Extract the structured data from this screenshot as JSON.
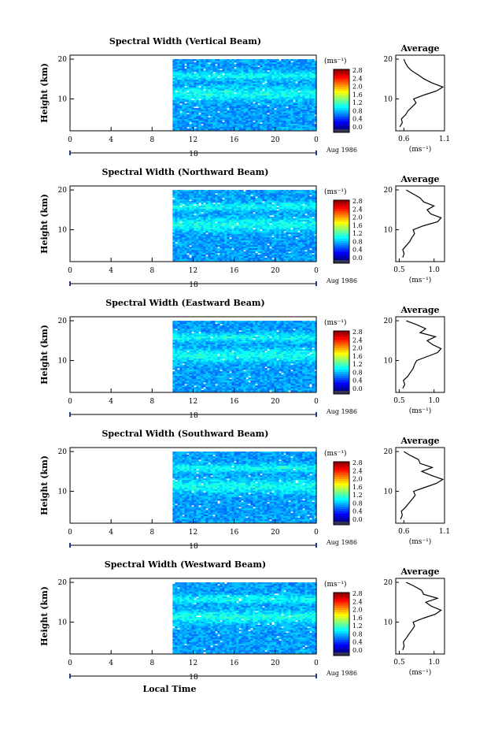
{
  "page": {
    "xaxis_title": "Local Time"
  },
  "chart_data": [
    {
      "type": "heatmap",
      "title": "Spectral Width (Vertical Beam)",
      "ylabel": "Height (km)",
      "xlabel": "Local Time",
      "x_ticks": [
        "0",
        "4",
        "8",
        "12",
        "16",
        "20",
        "0"
      ],
      "xlim": [
        0,
        24
      ],
      "ylim": [
        2,
        21
      ],
      "y_ticks": [
        "20",
        "10"
      ],
      "date_label": "18",
      "month_label": "Aug 1986",
      "colorbar": {
        "unit": "(ms⁻¹)",
        "ticks": [
          "2.8",
          "2.4",
          "2.0",
          "1.6",
          "1.2",
          "0.8",
          "0.4",
          "0.0"
        ],
        "range": [
          0,
          2.8
        ]
      },
      "profile": {
        "title": "Average",
        "xlabel": "(ms⁻¹)",
        "x_ticks": [
          "0.6",
          "1.1"
        ],
        "xlim": [
          0.5,
          1.1
        ],
        "y_ticks": [
          "20",
          "10"
        ],
        "heights": [
          3,
          4,
          5,
          6,
          7,
          8,
          9,
          10,
          11,
          12,
          13,
          14,
          15,
          16,
          17,
          18,
          19,
          20
        ],
        "values": [
          0.55,
          0.58,
          0.57,
          0.62,
          0.65,
          0.7,
          0.75,
          0.72,
          0.85,
          1.0,
          1.08,
          0.95,
          0.85,
          0.78,
          0.7,
          0.65,
          0.62,
          0.6
        ]
      }
    },
    {
      "type": "heatmap",
      "title": "Spectral Width (Northward Beam)",
      "ylabel": "Height (km)",
      "xlabel": "Local Time",
      "x_ticks": [
        "0",
        "4",
        "8",
        "12",
        "16",
        "20",
        "0"
      ],
      "xlim": [
        0,
        24
      ],
      "ylim": [
        2,
        21
      ],
      "y_ticks": [
        "20",
        "10"
      ],
      "date_label": "18",
      "month_label": "Aug 1986",
      "colorbar": {
        "unit": "(ms⁻¹)",
        "ticks": [
          "2.8",
          "2.4",
          "2.0",
          "1.6",
          "1.2",
          "0.8",
          "0.4",
          "0.0"
        ],
        "range": [
          0,
          2.8
        ]
      },
      "profile": {
        "title": "Average",
        "xlabel": "(ms⁻¹)",
        "x_ticks": [
          "0.5",
          "1.0"
        ],
        "xlim": [
          0.45,
          1.15
        ],
        "y_ticks": [
          "20",
          "10"
        ],
        "heights": [
          3,
          4,
          5,
          6,
          7,
          8,
          9,
          10,
          11,
          12,
          13,
          14,
          15,
          16,
          17,
          18,
          19,
          20
        ],
        "values": [
          0.55,
          0.57,
          0.55,
          0.6,
          0.65,
          0.68,
          0.72,
          0.7,
          0.85,
          1.05,
          1.1,
          0.95,
          0.9,
          1.0,
          0.85,
          0.8,
          0.7,
          0.6
        ]
      }
    },
    {
      "type": "heatmap",
      "title": "Spectral Width (Eastward Beam)",
      "ylabel": "Height (km)",
      "xlabel": "Local Time",
      "x_ticks": [
        "0",
        "4",
        "8",
        "12",
        "16",
        "20",
        "0"
      ],
      "xlim": [
        0,
        24
      ],
      "ylim": [
        2,
        21
      ],
      "y_ticks": [
        "20",
        "10"
      ],
      "date_label": "18",
      "month_label": "Aug 1986",
      "colorbar": {
        "unit": "(ms⁻¹)",
        "ticks": [
          "2.8",
          "2.4",
          "2.0",
          "1.6",
          "1.2",
          "0.8",
          "0.4",
          "0.0"
        ],
        "range": [
          0,
          2.8
        ]
      },
      "profile": {
        "title": "Average",
        "xlabel": "(ms⁻¹)",
        "x_ticks": [
          "0.5",
          "1.0"
        ],
        "xlim": [
          0.45,
          1.15
        ],
        "y_ticks": [
          "20",
          "10"
        ],
        "heights": [
          3,
          4,
          5,
          6,
          7,
          8,
          9,
          10,
          11,
          12,
          13,
          14,
          15,
          16,
          17,
          18,
          19,
          20
        ],
        "values": [
          0.55,
          0.58,
          0.56,
          0.62,
          0.66,
          0.7,
          0.72,
          0.75,
          0.9,
          1.05,
          1.1,
          0.98,
          0.9,
          1.02,
          0.8,
          0.88,
          0.75,
          0.6
        ]
      }
    },
    {
      "type": "heatmap",
      "title": "Spectral Width (Southward Beam)",
      "ylabel": "Height (km)",
      "xlabel": "Local Time",
      "x_ticks": [
        "0",
        "4",
        "8",
        "12",
        "16",
        "20",
        "0"
      ],
      "xlim": [
        0,
        24
      ],
      "ylim": [
        2,
        21
      ],
      "y_ticks": [
        "20",
        "10"
      ],
      "date_label": "18",
      "month_label": "Aug 1986",
      "colorbar": {
        "unit": "(ms⁻¹)",
        "ticks": [
          "2.8",
          "2.4",
          "2.0",
          "1.6",
          "1.2",
          "0.8",
          "0.4",
          "0.0"
        ],
        "range": [
          0,
          2.8
        ]
      },
      "profile": {
        "title": "Average",
        "xlabel": "(ms⁻¹)",
        "x_ticks": [
          "0.6",
          "1.1"
        ],
        "xlim": [
          0.5,
          1.1
        ],
        "y_ticks": [
          "20",
          "10"
        ],
        "heights": [
          3,
          4,
          5,
          6,
          7,
          8,
          9,
          10,
          11,
          12,
          13,
          14,
          15,
          16,
          17,
          18,
          19,
          20
        ],
        "values": [
          0.56,
          0.58,
          0.57,
          0.62,
          0.66,
          0.7,
          0.74,
          0.72,
          0.86,
          1.0,
          1.08,
          0.94,
          0.82,
          0.95,
          0.8,
          0.78,
          0.68,
          0.6
        ]
      }
    },
    {
      "type": "heatmap",
      "title": "Spectral Width (Westward Beam)",
      "ylabel": "Height (km)",
      "xlabel": "Local Time",
      "x_ticks": [
        "0",
        "4",
        "8",
        "12",
        "16",
        "20",
        "0"
      ],
      "xlim": [
        0,
        24
      ],
      "ylim": [
        2,
        21
      ],
      "y_ticks": [
        "20",
        "10"
      ],
      "date_label": "18",
      "month_label": "Aug 1986",
      "colorbar": {
        "unit": "(ms⁻¹)",
        "ticks": [
          "2.8",
          "2.4",
          "2.0",
          "1.6",
          "1.2",
          "0.8",
          "0.4",
          "0.0"
        ],
        "range": [
          0,
          2.8
        ]
      },
      "profile": {
        "title": "Average",
        "xlabel": "(ms⁻¹)",
        "x_ticks": [
          "0.5",
          "1.0"
        ],
        "xlim": [
          0.45,
          1.15
        ],
        "y_ticks": [
          "20",
          "10"
        ],
        "heights": [
          3,
          4,
          5,
          6,
          7,
          8,
          9,
          10,
          11,
          12,
          13,
          14,
          15,
          16,
          17,
          18,
          19,
          20
        ],
        "values": [
          0.55,
          0.57,
          0.56,
          0.6,
          0.64,
          0.68,
          0.72,
          0.7,
          0.85,
          1.02,
          1.1,
          0.96,
          0.88,
          1.05,
          0.85,
          0.82,
          0.72,
          0.6
        ]
      }
    }
  ]
}
